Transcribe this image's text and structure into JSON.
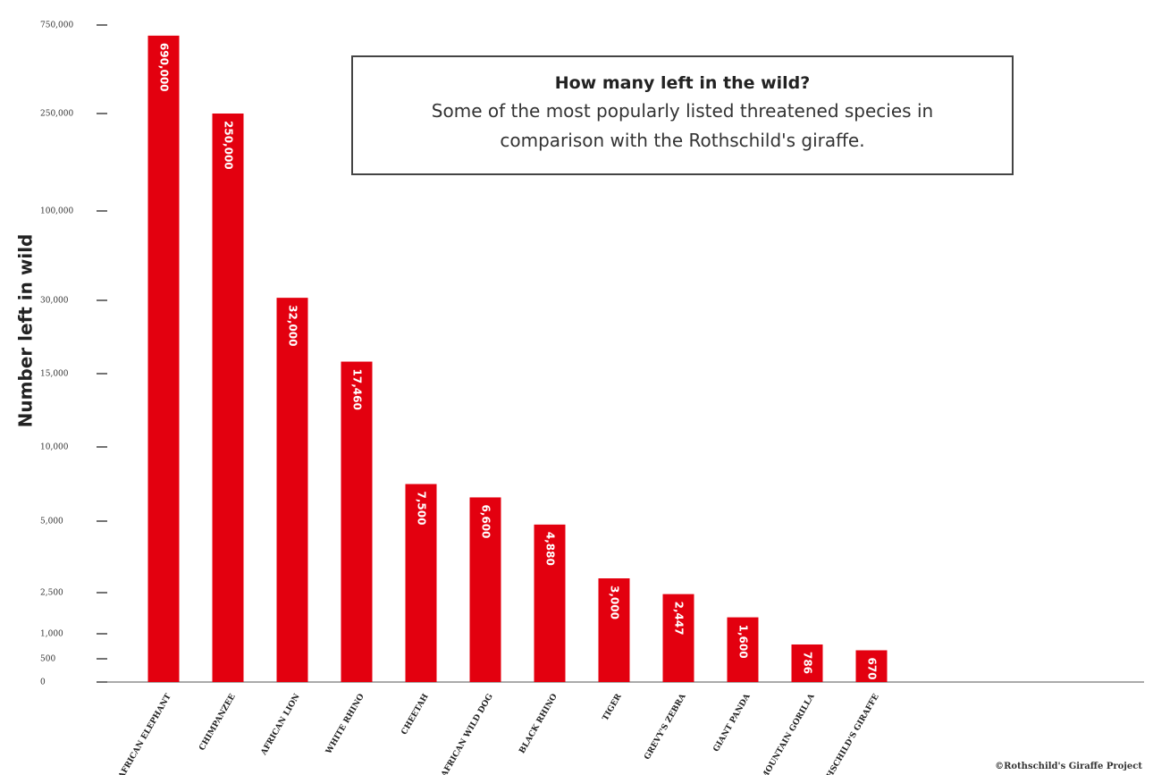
{
  "chart_data": {
    "type": "bar",
    "title": "How many left in the wild?",
    "subtitle": "Some of the most popularly listed threatened species in comparison with the Rothschild's giraffe.",
    "y_label": "Number left in wild",
    "source": "©Rothschild's Giraffe Project",
    "categories": [
      "AFRICAN ELEPHANT",
      "CHIMPANZEE",
      "AFRICAN LION",
      "WHITE RHINO",
      "CHEETAH",
      "AFRICAN WILD DOG",
      "BLACK RHINO",
      "TIGER",
      "GREVY'S ZEBRA",
      "GIANT PANDA",
      "MOUNTAIN GORILLA",
      "ROTHSCHILD'S GIRAFFE"
    ],
    "values": [
      690000,
      250000,
      32000,
      17460,
      7500,
      6600,
      4880,
      3000,
      2447,
      1600,
      786,
      670
    ],
    "value_labels": [
      "690,000",
      "250,000",
      "32,000",
      "17,460",
      "7,500",
      "6,600",
      "4,880",
      "3,000",
      "2,447",
      "1,600",
      "786",
      "670"
    ],
    "color": "#e3000f",
    "ylim": [
      0,
      750000
    ],
    "yticks": [
      0,
      500,
      {
        "value": 1000,
        "label": "1,000"
      },
      {
        "value": 2500,
        "label": "2,500"
      },
      {
        "value": 5000,
        "label": "5,000"
      },
      {
        "value": 10000,
        "label": "10,000"
      },
      {
        "value": 15000,
        "label": "15,000"
      },
      {
        "value": 30000,
        "label": "30,000"
      },
      {
        "value": 100000,
        "label": "100,000"
      },
      {
        "value": 250000,
        "label": "250,000"
      },
      {
        "value": 750000,
        "label": "750,000"
      }
    ],
    "scale": "piecewise"
  }
}
